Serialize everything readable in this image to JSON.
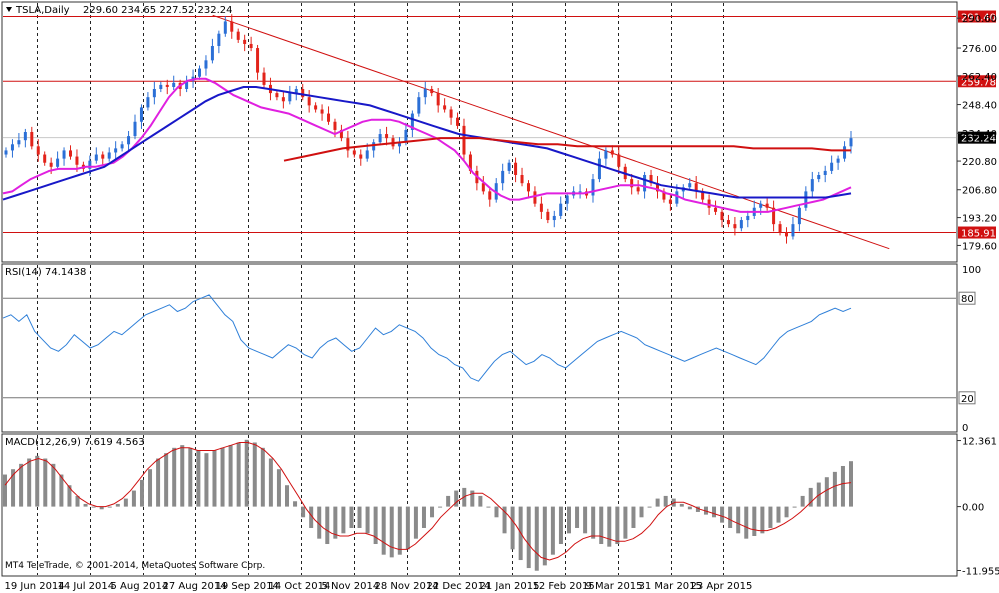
{
  "header": {
    "symbol": "TSLA,Daily",
    "ohlc": "229.60 234.65 227.52 232.24"
  },
  "colors": {
    "bull": "#2b6fd6",
    "bear": "#e2231a",
    "ma_fast": "#e020e0",
    "ma_mid": "#1818c8",
    "ma_slow": "#d01010",
    "hline": "#d01010",
    "rsi_line": "#2e7fd8",
    "macd_hist": "#8a8a8a",
    "macd_signal": "#d01010",
    "grid": "#222222"
  },
  "chart_data": [
    {
      "type": "candlestick",
      "panel": "price",
      "ylim": [
        172,
        298
      ],
      "yticks": [
        "290.60",
        "276.00",
        "262.40",
        "248.40",
        "234.40",
        "220.80",
        "206.80",
        "193.20",
        "179.60"
      ],
      "xticks": [
        "19 Jun 2014",
        "14 Jul 2014",
        "5 Aug 2014",
        "27 Aug 2014",
        "19 Sep 2014",
        "14 Oct 2014",
        "5 Nov 2014",
        "28 Nov 2014",
        "22 Dec 2014",
        "21 Jan 2015",
        "12 Feb 2015",
        "9 Mar 2015",
        "31 Mar 2015",
        "23 Apr 2015"
      ],
      "levels": [
        {
          "label": "291.40",
          "value": 291.4
        },
        {
          "label": "259.78",
          "value": 259.78
        },
        {
          "label": "185.91",
          "value": 185.91
        }
      ],
      "current": {
        "label": "232.24",
        "value": 232.24
      },
      "trendline": {
        "from": [
          0.22,
          292
        ],
        "to": [
          0.93,
          178
        ]
      },
      "closes": [
        226,
        229,
        231,
        235,
        228,
        224,
        220,
        218,
        222,
        226,
        223,
        219,
        217,
        221,
        224,
        222,
        225,
        227,
        229,
        233,
        240,
        247,
        252,
        256,
        258,
        257,
        259,
        256,
        260,
        262,
        266,
        270,
        277,
        283,
        289,
        284,
        280,
        278,
        276,
        264,
        258,
        254,
        252,
        250,
        254,
        256,
        252,
        248,
        246,
        244,
        240,
        236,
        232,
        226,
        224,
        222,
        226,
        230,
        234,
        232,
        228,
        230,
        236,
        244,
        252,
        256,
        254,
        248,
        246,
        242,
        238,
        224,
        216,
        210,
        206,
        202,
        210,
        216,
        220,
        214,
        210,
        206,
        200,
        196,
        192,
        194,
        200,
        204,
        206,
        206,
        204,
        212,
        222,
        226,
        224,
        218,
        212,
        208,
        206,
        214,
        210,
        206,
        202,
        200,
        206,
        208,
        210,
        206,
        202,
        198,
        196,
        192,
        190,
        188,
        192,
        194,
        198,
        200,
        198,
        190,
        186,
        184,
        190,
        198,
        206,
        212,
        214,
        216,
        220,
        222,
        228,
        232
      ],
      "ma_fast": [
        205,
        206,
        209,
        212,
        214,
        216,
        217,
        217,
        217,
        218,
        218,
        219,
        220,
        223,
        227,
        232,
        238,
        245,
        252,
        257,
        260,
        261,
        261,
        259,
        256,
        253,
        251,
        249,
        247,
        246,
        245,
        244,
        242,
        240,
        238,
        236,
        234,
        236,
        238,
        240,
        241,
        241,
        241,
        240,
        238,
        236,
        234,
        232,
        229,
        226,
        221,
        215,
        211,
        207,
        204,
        202,
        202,
        203,
        204,
        205,
        205,
        205,
        205,
        205,
        206,
        207,
        208,
        209,
        209,
        209,
        208,
        207,
        205,
        204,
        202,
        201,
        200,
        199,
        198,
        197,
        196,
        196,
        196,
        196,
        197,
        198,
        199,
        200,
        201,
        202,
        204,
        206,
        208
      ],
      "ma_mid": [
        202,
        204,
        206,
        208,
        210,
        212,
        214,
        216,
        218,
        222,
        226,
        230,
        234,
        238,
        242,
        246,
        250,
        253,
        255,
        257,
        257,
        256,
        255,
        254,
        253,
        252,
        251,
        250,
        249,
        248,
        246,
        244,
        242,
        240,
        238,
        236,
        234,
        233,
        232,
        231,
        230,
        229,
        228,
        227,
        225,
        223,
        221,
        219,
        217,
        215,
        213,
        211,
        209,
        208,
        207,
        206,
        205,
        204,
        203,
        203,
        203,
        203,
        203,
        203,
        203,
        203,
        204,
        205
      ],
      "ma_slow": [
        221,
        223,
        225,
        227,
        228,
        229,
        230,
        231,
        232,
        232,
        232,
        231,
        230,
        229,
        229,
        228,
        228,
        228,
        228,
        228,
        228,
        228,
        228,
        228,
        227,
        227,
        227,
        227,
        226,
        226
      ]
    },
    {
      "type": "line",
      "panel": "rsi",
      "name": "RSI(14) 74.1438",
      "ylim": [
        0,
        100
      ],
      "levels": [
        {
          "label": "80",
          "value": 80
        },
        {
          "label": "20",
          "value": 20
        }
      ],
      "yticks": [
        "100",
        "0"
      ],
      "values": [
        68,
        70,
        66,
        70,
        60,
        55,
        50,
        48,
        52,
        58,
        54,
        50,
        52,
        56,
        60,
        58,
        62,
        66,
        70,
        72,
        74,
        76,
        72,
        74,
        78,
        80,
        82,
        76,
        70,
        66,
        55,
        50,
        48,
        46,
        44,
        48,
        52,
        50,
        46,
        44,
        50,
        54,
        56,
        52,
        48,
        50,
        56,
        62,
        58,
        60,
        64,
        62,
        60,
        56,
        50,
        46,
        44,
        40,
        38,
        32,
        30,
        36,
        42,
        46,
        48,
        44,
        40,
        42,
        46,
        44,
        40,
        38,
        42,
        46,
        50,
        54,
        56,
        58,
        60,
        58,
        56,
        52,
        50,
        48,
        46,
        44,
        42,
        44,
        46,
        48,
        50,
        48,
        46,
        44,
        42,
        40,
        44,
        50,
        56,
        60,
        62,
        64,
        66,
        70,
        72,
        74,
        72,
        74
      ]
    },
    {
      "type": "bar",
      "panel": "macd",
      "name": "MACD(12,26,9) 7.619 4.563",
      "ylim": [
        -12.8,
        13.4
      ],
      "yticks": [
        "12.361",
        "0.00",
        "-11.955"
      ],
      "histogram": [
        6,
        7,
        8,
        9,
        9.5,
        9,
        8,
        6,
        4,
        2,
        0.5,
        0,
        -0.5,
        0,
        0.5,
        1.5,
        3,
        5,
        7,
        9,
        10,
        11,
        11.5,
        11,
        10.5,
        10,
        10.5,
        11,
        11.5,
        12,
        12.5,
        12,
        11,
        9,
        7,
        4,
        1,
        -2,
        -4,
        -6,
        -7,
        -6,
        -5,
        -4,
        -4,
        -5,
        -7,
        -9,
        -9.5,
        -9,
        -8,
        -6,
        -4,
        -2,
        0,
        2,
        3,
        3.5,
        3,
        2,
        0,
        -2,
        -5,
        -8,
        -10,
        -11.5,
        -12,
        -11,
        -9,
        -7,
        -5,
        -4,
        -5,
        -6,
        -7,
        -7.5,
        -7,
        -6,
        -4,
        -2,
        0,
        1.5,
        2,
        1.5,
        0.5,
        -0.5,
        -1,
        -1.5,
        -2,
        -3,
        -4,
        -5,
        -6,
        -5.5,
        -5,
        -4,
        -3,
        -2,
        0,
        2,
        3.5,
        4.5,
        5.5,
        6.5,
        7.6,
        8.5
      ],
      "signal": [
        4,
        6,
        7.5,
        8.5,
        9,
        8.5,
        7,
        5,
        3,
        1.5,
        0.5,
        0,
        0,
        0.5,
        1.5,
        3,
        5,
        7,
        8.5,
        9.5,
        10.5,
        11,
        11,
        10.5,
        10.5,
        10.5,
        11,
        11.5,
        12,
        12,
        11.5,
        10.5,
        9,
        7,
        4.5,
        2,
        -0.5,
        -2.5,
        -4,
        -5,
        -5.5,
        -5.5,
        -5,
        -5,
        -5.5,
        -6.5,
        -7.5,
        -8,
        -8,
        -7,
        -5.5,
        -4,
        -2,
        -0.5,
        1,
        2,
        2.5,
        2.5,
        1.5,
        0,
        -1.5,
        -3.5,
        -6,
        -8,
        -9.5,
        -10,
        -9.5,
        -8.5,
        -7,
        -6,
        -5.5,
        -5.5,
        -6,
        -6.5,
        -6.5,
        -6,
        -5,
        -3.5,
        -1.5,
        0,
        0.8,
        0.8,
        0.2,
        -0.5,
        -1,
        -1.5,
        -2,
        -2.8,
        -3.5,
        -4.2,
        -4.5,
        -4.5,
        -4,
        -3.2,
        -2.2,
        -1,
        0.5,
        2,
        3,
        3.8,
        4.3,
        4.5
      ]
    }
  ],
  "footer": {
    "copyright": "MT4 TeleTrade, © 2001-2014, MetaQuotes Software Corp."
  }
}
